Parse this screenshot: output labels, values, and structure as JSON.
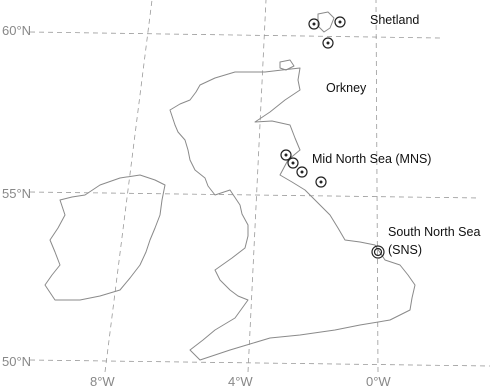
{
  "map": {
    "lat_labels": [
      "60°N",
      "55°N",
      "50°N"
    ],
    "lon_labels": [
      "8°W",
      "4°W",
      "0°W"
    ],
    "sites": [
      {
        "label": [
          "Shetland"
        ]
      },
      {
        "label": [
          "Orkney"
        ]
      },
      {
        "label": [
          "Mid North Sea (MNS)"
        ]
      },
      {
        "label": [
          "South North Sea",
          "(SNS)"
        ]
      }
    ]
  }
}
